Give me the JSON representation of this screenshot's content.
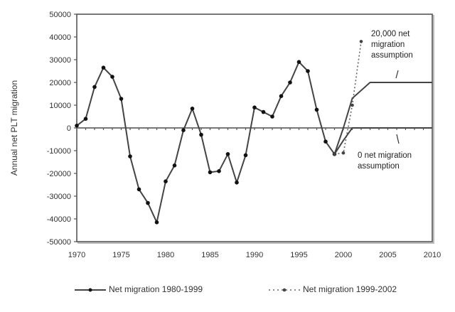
{
  "chart_data": {
    "type": "line",
    "title": "",
    "xlabel": "",
    "ylabel": "Annual net PLT migration",
    "xlim": [
      1970,
      2010
    ],
    "ylim": [
      -50000,
      50000
    ],
    "x_ticks": [
      "1970",
      "1975",
      "1980",
      "1985",
      "1990",
      "1995",
      "2000",
      "2005",
      "2010"
    ],
    "y_ticks": [
      "50000",
      "40000",
      "30000",
      "20000",
      "10000",
      "0",
      "-10000",
      "-20000",
      "-30000",
      "-40000",
      "-50000"
    ],
    "grid": false,
    "legend_position": "bottom",
    "series": [
      {
        "name": "Net migration 1980-1999",
        "style": "solid-with-markers",
        "x": [
          1970,
          1971,
          1972,
          1973,
          1974,
          1975,
          1976,
          1977,
          1978,
          1979,
          1980,
          1981,
          1982,
          1983,
          1984,
          1985,
          1986,
          1987,
          1988,
          1989,
          1990,
          1991,
          1992,
          1993,
          1994,
          1995,
          1996,
          1997,
          1998,
          1999
        ],
        "values": [
          1000,
          4000,
          18000,
          26500,
          22500,
          12800,
          -12500,
          -27000,
          -33000,
          -41500,
          -23500,
          -16500,
          -1000,
          8500,
          -3000,
          -19500,
          -19000,
          -11500,
          -24000,
          -12000,
          9000,
          7000,
          5000,
          14000,
          20000,
          29000,
          25000,
          8000,
          -6000,
          -11500
        ]
      },
      {
        "name": "Net migration 1999-2002",
        "style": "dotted-with-markers",
        "x": [
          1999,
          2000,
          2001,
          2002
        ],
        "values": [
          -11500,
          -11000,
          10000,
          38000
        ]
      },
      {
        "name": "20,000 net migration assumption",
        "style": "solid",
        "x": [
          1999,
          2000,
          2001,
          2003,
          2010
        ],
        "values": [
          -11500,
          0,
          13000,
          20000,
          20000
        ]
      },
      {
        "name": "0 net migration assumption",
        "style": "solid",
        "x": [
          1999,
          2000,
          2001,
          2010
        ],
        "values": [
          -11500,
          -5500,
          0,
          0
        ]
      }
    ],
    "annotations": [
      {
        "text": "20,000 net migration assumption",
        "lines": [
          "20,000 net",
          "migration",
          "assumption"
        ]
      },
      {
        "text": "0 net migration assumption",
        "lines": [
          "0 net migration",
          "assumption"
        ]
      }
    ]
  },
  "legend": {
    "items": [
      {
        "label": "Net migration 1980-1999"
      },
      {
        "label": "Net migration 1999-2002"
      }
    ]
  }
}
